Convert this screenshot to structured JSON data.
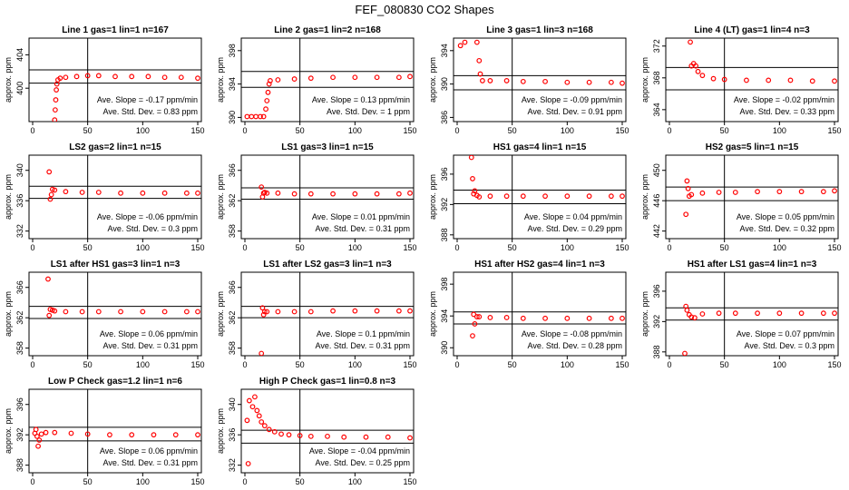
{
  "figure": {
    "title": "FEF_080830  CO2 Shapes"
  },
  "colors": {
    "points": "#ff0000",
    "axes": "#000000"
  },
  "chart_data": [
    {
      "type": "scatter",
      "title": "Line 1 gas=1 lin=1 n=167",
      "ylabel": "approx. ppm",
      "xlim": [
        0,
        150
      ],
      "ylim": [
        396,
        406
      ],
      "xticks": [
        0,
        50,
        100,
        150
      ],
      "yticks": [
        400,
        404
      ],
      "hlines": [
        400.6,
        402.2
      ],
      "vline": 50,
      "stats": {
        "slope_label": "Ave. Slope =",
        "slope_value": "-0.17",
        "slope_unit": "ppm/min",
        "sd_label": "Ave. Std. Dev. =",
        "sd_value": "0.83",
        "sd_unit": "ppm"
      },
      "points": [
        [
          20,
          396.2
        ],
        [
          20.5,
          397.4
        ],
        [
          21,
          398.6
        ],
        [
          21.5,
          399.8
        ],
        [
          22,
          400.5
        ],
        [
          23,
          401.0
        ],
        [
          25,
          401.2
        ],
        [
          30,
          401.3
        ],
        [
          40,
          401.4
        ],
        [
          50,
          401.5
        ],
        [
          60,
          401.5
        ],
        [
          75,
          401.4
        ],
        [
          90,
          401.4
        ],
        [
          105,
          401.4
        ],
        [
          120,
          401.3
        ],
        [
          135,
          401.3
        ],
        [
          150,
          401.2
        ]
      ]
    },
    {
      "type": "scatter",
      "title": "Line 2 gas=1 lin=2 n=168",
      "ylabel": "approx. ppm",
      "xlim": [
        0,
        150
      ],
      "ylim": [
        389.5,
        399.5
      ],
      "xticks": [
        0,
        50,
        100,
        150
      ],
      "yticks": [
        390,
        394,
        398
      ],
      "hlines": [
        393.6,
        395.5
      ],
      "vline": 50,
      "stats": {
        "slope_label": "Ave. Slope =",
        "slope_value": "0.13",
        "slope_unit": "ppm/min",
        "sd_label": "Ave. Std. Dev. =",
        "sd_value": "1",
        "sd_unit": "ppm"
      },
      "points": [
        [
          2,
          390.1
        ],
        [
          6,
          390.1
        ],
        [
          10,
          390.1
        ],
        [
          14,
          390.1
        ],
        [
          17,
          390.1
        ],
        [
          19,
          391
        ],
        [
          20,
          392
        ],
        [
          21,
          393
        ],
        [
          22,
          394
        ],
        [
          23,
          394.4
        ],
        [
          30,
          394.5
        ],
        [
          45,
          394.6
        ],
        [
          60,
          394.7
        ],
        [
          80,
          394.8
        ],
        [
          100,
          394.8
        ],
        [
          120,
          394.8
        ],
        [
          140,
          394.8
        ],
        [
          150,
          394.9
        ]
      ]
    },
    {
      "type": "scatter",
      "title": "Line 3 gas=1 lin=3 n=168",
      "ylabel": "approx. ppm",
      "xlim": [
        0,
        150
      ],
      "ylim": [
        385.5,
        395.5
      ],
      "xticks": [
        0,
        50,
        100,
        150
      ],
      "yticks": [
        386,
        390,
        394
      ],
      "hlines": [
        389.3,
        391.0
      ],
      "vline": 50,
      "stats": {
        "slope_label": "Ave. Slope =",
        "slope_value": "-0.09",
        "slope_unit": "ppm/min",
        "sd_label": "Ave. Std. Dev. =",
        "sd_value": "0.91",
        "sd_unit": "ppm"
      },
      "points": [
        [
          3,
          394.6
        ],
        [
          7,
          395
        ],
        [
          18,
          395
        ],
        [
          20,
          392.8
        ],
        [
          21,
          391.2
        ],
        [
          23,
          390.4
        ],
        [
          30,
          390.4
        ],
        [
          45,
          390.4
        ],
        [
          60,
          390.3
        ],
        [
          80,
          390.3
        ],
        [
          100,
          390.2
        ],
        [
          120,
          390.2
        ],
        [
          140,
          390.2
        ],
        [
          150,
          390.1
        ]
      ]
    },
    {
      "type": "scatter",
      "title": "Line 4 (LT) gas=1 lin=4 n=3",
      "ylabel": "approx. ppm",
      "xlim": [
        0,
        150
      ],
      "ylim": [
        362.5,
        373
      ],
      "xticks": [
        0,
        50,
        100,
        150
      ],
      "yticks": [
        364,
        368,
        372
      ],
      "hlines": [
        366.5,
        369.3
      ],
      "vline": 50,
      "stats": {
        "slope_label": "Ave. Slope =",
        "slope_value": "-0.02",
        "slope_unit": "ppm/min",
        "sd_label": "Ave. Std. Dev. =",
        "sd_value": "0.33",
        "sd_unit": "ppm"
      },
      "points": [
        [
          19,
          372.5
        ],
        [
          20,
          369.5
        ],
        [
          22,
          369.8
        ],
        [
          24,
          369.5
        ],
        [
          26,
          368.8
        ],
        [
          30,
          368.3
        ],
        [
          40,
          367.9
        ],
        [
          50,
          367.8
        ],
        [
          70,
          367.7
        ],
        [
          90,
          367.7
        ],
        [
          110,
          367.7
        ],
        [
          130,
          367.6
        ],
        [
          150,
          367.6
        ]
      ]
    },
    {
      "type": "scatter",
      "title": "LS2 gas=2 lin=1 n=15",
      "ylabel": "approx. ppm",
      "xlim": [
        0,
        150
      ],
      "ylim": [
        331,
        342
      ],
      "xticks": [
        0,
        50,
        100,
        150
      ],
      "yticks": [
        332,
        336,
        340
      ],
      "hlines": [
        336.3,
        337.9
      ],
      "vline": 50,
      "stats": {
        "slope_label": "Ave. Slope =",
        "slope_value": "-0.06",
        "slope_unit": "ppm/min",
        "sd_label": "Ave. Std. Dev. =",
        "sd_value": "0.3",
        "sd_unit": "ppm"
      },
      "points": [
        [
          15,
          339.8
        ],
        [
          16,
          336.2
        ],
        [
          17,
          336.8
        ],
        [
          18,
          337.5
        ],
        [
          20,
          337.4
        ],
        [
          30,
          337.2
        ],
        [
          45,
          337.1
        ],
        [
          60,
          337.1
        ],
        [
          80,
          337.0
        ],
        [
          100,
          337.0
        ],
        [
          120,
          337.0
        ],
        [
          140,
          337.0
        ],
        [
          150,
          337.0
        ]
      ]
    },
    {
      "type": "scatter",
      "title": "LS1 gas=3 lin=1 n=15",
      "ylabel": "approx. ppm",
      "xlim": [
        0,
        150
      ],
      "ylim": [
        357,
        368
      ],
      "xticks": [
        0,
        50,
        100,
        150
      ],
      "yticks": [
        358,
        362,
        366
      ],
      "hlines": [
        362.2,
        363.7
      ],
      "vline": 50,
      "stats": {
        "slope_label": "Ave. Slope =",
        "slope_value": "0.01",
        "slope_unit": "ppm/min",
        "sd_label": "Ave. Std. Dev. =",
        "sd_value": "0.31",
        "sd_unit": "ppm"
      },
      "points": [
        [
          15,
          363.8
        ],
        [
          16,
          362.5
        ],
        [
          17,
          363.0
        ],
        [
          18,
          363.1
        ],
        [
          20,
          363.0
        ],
        [
          30,
          363.0
        ],
        [
          45,
          362.9
        ],
        [
          60,
          362.9
        ],
        [
          80,
          362.9
        ],
        [
          100,
          362.9
        ],
        [
          120,
          362.9
        ],
        [
          140,
          362.9
        ],
        [
          150,
          363.0
        ]
      ]
    },
    {
      "type": "scatter",
      "title": "HS1 gas=4 lin=1 n=15",
      "ylabel": "approx. ppm",
      "xlim": [
        0,
        150
      ],
      "ylim": [
        387.5,
        398.5
      ],
      "xticks": [
        0,
        50,
        100,
        150
      ],
      "yticks": [
        388,
        392,
        396
      ],
      "hlines": [
        392.1,
        393.9
      ],
      "vline": 50,
      "stats": {
        "slope_label": "Ave. Slope =",
        "slope_value": "0.04",
        "slope_unit": "ppm/min",
        "sd_label": "Ave. Std. Dev. =",
        "sd_value": "0.29",
        "sd_unit": "ppm"
      },
      "points": [
        [
          13,
          398.2
        ],
        [
          14,
          395.4
        ],
        [
          15,
          393.4
        ],
        [
          16,
          393.8
        ],
        [
          18,
          393.2
        ],
        [
          20,
          393.0
        ],
        [
          30,
          393.1
        ],
        [
          45,
          393.1
        ],
        [
          60,
          393.1
        ],
        [
          80,
          393.1
        ],
        [
          100,
          393.1
        ],
        [
          120,
          393.1
        ],
        [
          140,
          393.1
        ],
        [
          150,
          393.1
        ]
      ]
    },
    {
      "type": "scatter",
      "title": "HS2 gas=5 lin=1 n=15",
      "ylabel": "approx. ppm",
      "xlim": [
        0,
        150
      ],
      "ylim": [
        441,
        452
      ],
      "xticks": [
        0,
        50,
        100,
        150
      ],
      "yticks": [
        442,
        446,
        450
      ],
      "hlines": [
        446.0,
        447.8
      ],
      "vline": 50,
      "stats": {
        "slope_label": "Ave. Slope =",
        "slope_value": "0.05",
        "slope_unit": "ppm/min",
        "sd_label": "Ave. Std. Dev. =",
        "sd_value": "0.32",
        "sd_unit": "ppm"
      },
      "points": [
        [
          15,
          444.2
        ],
        [
          16,
          448.6
        ],
        [
          17,
          447.6
        ],
        [
          18,
          446.6
        ],
        [
          20,
          446.8
        ],
        [
          30,
          447.0
        ],
        [
          45,
          447.1
        ],
        [
          60,
          447.1
        ],
        [
          80,
          447.2
        ],
        [
          100,
          447.2
        ],
        [
          120,
          447.2
        ],
        [
          140,
          447.2
        ],
        [
          150,
          447.3
        ]
      ]
    },
    {
      "type": "scatter",
      "title": "LS1 after HS1 gas=3 lin=1 n=3",
      "ylabel": "approx. ppm",
      "xlim": [
        0,
        150
      ],
      "ylim": [
        357,
        368
      ],
      "xticks": [
        0,
        50,
        100,
        150
      ],
      "yticks": [
        358,
        362,
        366
      ],
      "hlines": [
        361.9,
        363.5
      ],
      "vline": 50,
      "stats": {
        "slope_label": "Ave. Slope =",
        "slope_value": "0.06",
        "slope_unit": "ppm/min",
        "sd_label": "Ave. Std. Dev. =",
        "sd_value": "0.31",
        "sd_unit": "ppm"
      },
      "points": [
        [
          14,
          367.1
        ],
        [
          15,
          362.3
        ],
        [
          16,
          363.1
        ],
        [
          18,
          363.0
        ],
        [
          20,
          362.9
        ],
        [
          30,
          362.8
        ],
        [
          45,
          362.8
        ],
        [
          60,
          362.8
        ],
        [
          80,
          362.8
        ],
        [
          100,
          362.8
        ],
        [
          120,
          362.8
        ],
        [
          140,
          362.8
        ],
        [
          150,
          362.8
        ]
      ]
    },
    {
      "type": "scatter",
      "title": "LS1 after LS2 gas=3 lin=1 n=3",
      "ylabel": "approx. ppm",
      "xlim": [
        0,
        150
      ],
      "ylim": [
        357,
        368
      ],
      "xticks": [
        0,
        50,
        100,
        150
      ],
      "yticks": [
        358,
        362,
        366
      ],
      "hlines": [
        362.0,
        363.5
      ],
      "vline": 50,
      "stats": {
        "slope_label": "Ave. Slope =",
        "slope_value": "0.1",
        "slope_unit": "ppm/min",
        "sd_label": "Ave. Std. Dev. =",
        "sd_value": "0.31",
        "sd_unit": "ppm"
      },
      "points": [
        [
          15,
          357.3
        ],
        [
          16,
          363.3
        ],
        [
          17,
          362.4
        ],
        [
          18,
          362.8
        ],
        [
          20,
          362.8
        ],
        [
          30,
          362.8
        ],
        [
          45,
          362.8
        ],
        [
          60,
          362.8
        ],
        [
          80,
          362.9
        ],
        [
          100,
          362.9
        ],
        [
          120,
          362.9
        ],
        [
          140,
          362.9
        ],
        [
          150,
          362.9
        ]
      ]
    },
    {
      "type": "scatter",
      "title": "HS1 after HS2 gas=4 lin=1 n=3",
      "ylabel": "approx. ppm",
      "xlim": [
        0,
        150
      ],
      "ylim": [
        389,
        399.5
      ],
      "xticks": [
        0,
        50,
        100,
        150
      ],
      "yticks": [
        390,
        394,
        398
      ],
      "hlines": [
        393.0,
        394.5
      ],
      "vline": 50,
      "stats": {
        "slope_label": "Ave. Slope =",
        "slope_value": "-0.08",
        "slope_unit": "ppm/min",
        "sd_label": "Ave. Std. Dev. =",
        "sd_value": "0.28",
        "sd_unit": "ppm"
      },
      "points": [
        [
          14,
          391.5
        ],
        [
          15,
          394.2
        ],
        [
          16,
          393.0
        ],
        [
          18,
          393.9
        ],
        [
          20,
          393.9
        ],
        [
          30,
          393.8
        ],
        [
          45,
          393.8
        ],
        [
          60,
          393.7
        ],
        [
          80,
          393.7
        ],
        [
          100,
          393.7
        ],
        [
          120,
          393.7
        ],
        [
          140,
          393.7
        ],
        [
          150,
          393.7
        ]
      ]
    },
    {
      "type": "scatter",
      "title": "HS1 after LS1 gas=4 lin=1 n=3",
      "ylabel": "approx. ppm",
      "xlim": [
        0,
        150
      ],
      "ylim": [
        387.5,
        398.5
      ],
      "xticks": [
        0,
        50,
        100,
        150
      ],
      "yticks": [
        388,
        392,
        396
      ],
      "hlines": [
        392.2,
        393.8
      ],
      "vline": 50,
      "stats": {
        "slope_label": "Ave. Slope =",
        "slope_value": "0.07",
        "slope_unit": "ppm/min",
        "sd_label": "Ave. Std. Dev. =",
        "sd_value": "0.3",
        "sd_unit": "ppm"
      },
      "points": [
        [
          14,
          387.8
        ],
        [
          15,
          394.0
        ],
        [
          16,
          393.5
        ],
        [
          18,
          392.9
        ],
        [
          20,
          392.6
        ],
        [
          23,
          392.5
        ],
        [
          30,
          393.0
        ],
        [
          45,
          393.1
        ],
        [
          60,
          393.1
        ],
        [
          80,
          393.1
        ],
        [
          100,
          393.1
        ],
        [
          120,
          393.1
        ],
        [
          140,
          393.1
        ],
        [
          150,
          393.1
        ]
      ]
    },
    {
      "type": "scatter",
      "title": "Low P Check gas=1.2 lin=1 n=6",
      "ylabel": "approx. ppm",
      "xlim": [
        0,
        150
      ],
      "ylim": [
        387,
        398
      ],
      "xticks": [
        0,
        50,
        100,
        150
      ],
      "yticks": [
        388,
        392,
        396
      ],
      "hlines": [
        391.2,
        393.0
      ],
      "vline": 50,
      "stats": {
        "slope_label": "Ave. Slope =",
        "slope_value": "0.06",
        "slope_unit": "ppm/min",
        "sd_label": "Ave. Std. Dev. =",
        "sd_value": "0.31",
        "sd_unit": "ppm"
      },
      "points": [
        [
          2,
          392.2
        ],
        [
          3,
          392.7
        ],
        [
          4,
          391.8
        ],
        [
          5,
          390.5
        ],
        [
          6,
          391.3
        ],
        [
          8,
          392.1
        ],
        [
          12,
          392.3
        ],
        [
          20,
          392.3
        ],
        [
          35,
          392.2
        ],
        [
          50,
          392.1
        ],
        [
          70,
          392.0
        ],
        [
          90,
          392.0
        ],
        [
          110,
          392.0
        ],
        [
          130,
          392.0
        ],
        [
          150,
          392.0
        ]
      ]
    },
    {
      "type": "scatter",
      "title": "High P Check gas=1 lin=0.8 n=3",
      "ylabel": "approx. ppm",
      "xlim": [
        0,
        150
      ],
      "ylim": [
        331,
        342
      ],
      "xticks": [
        0,
        50,
        100,
        150
      ],
      "yticks": [
        332,
        336,
        340
      ],
      "hlines": [
        334.9,
        336.6
      ],
      "vline": 50,
      "stats": {
        "slope_label": "Ave. Slope =",
        "slope_value": "-0.04",
        "slope_unit": "ppm/min",
        "sd_label": "Ave. Std. Dev. =",
        "sd_value": "0.25",
        "sd_unit": "ppm"
      },
      "points": [
        [
          2,
          337.9
        ],
        [
          3,
          332.2
        ],
        [
          4,
          340.5
        ],
        [
          7,
          339.7
        ],
        [
          9,
          341.0
        ],
        [
          11,
          339.2
        ],
        [
          13,
          338.5
        ],
        [
          15,
          337.7
        ],
        [
          18,
          337.2
        ],
        [
          22,
          336.7
        ],
        [
          27,
          336.4
        ],
        [
          33,
          336.1
        ],
        [
          40,
          336.0
        ],
        [
          50,
          335.9
        ],
        [
          60,
          335.8
        ],
        [
          75,
          335.8
        ],
        [
          90,
          335.7
        ],
        [
          110,
          335.7
        ],
        [
          130,
          335.7
        ],
        [
          150,
          335.6
        ]
      ]
    }
  ]
}
